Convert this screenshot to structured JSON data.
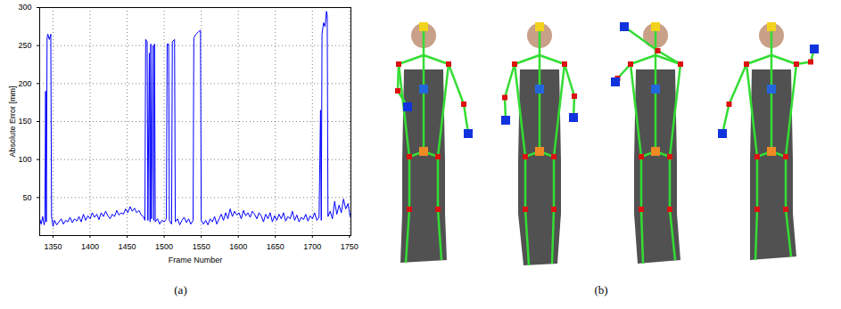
{
  "chart_data": {
    "type": "line",
    "x_label": "Frame Number",
    "y_label": "Absolute Error [mm]",
    "color": "#0000ff",
    "grid": true,
    "xlim": [
      1332,
      1752
    ],
    "xticks": [
      1350,
      1400,
      1450,
      1500,
      1550,
      1600,
      1650,
      1700,
      1750
    ],
    "ylim": [
      0,
      300
    ],
    "yticks": [
      50,
      100,
      150,
      200,
      250,
      300
    ],
    "x": [
      1332,
      1334,
      1336,
      1338,
      1339,
      1340,
      1341,
      1342,
      1343,
      1345,
      1347,
      1348,
      1350,
      1352,
      1355,
      1358,
      1361,
      1364,
      1367,
      1370,
      1373,
      1376,
      1379,
      1382,
      1385,
      1388,
      1391,
      1394,
      1397,
      1400,
      1403,
      1406,
      1409,
      1412,
      1415,
      1418,
      1421,
      1424,
      1427,
      1430,
      1433,
      1436,
      1439,
      1442,
      1445,
      1448,
      1451,
      1454,
      1457,
      1460,
      1463,
      1466,
      1469,
      1472,
      1474,
      1475,
      1477,
      1478,
      1480,
      1481,
      1482,
      1483,
      1485,
      1486,
      1487,
      1488,
      1491,
      1494,
      1497,
      1500,
      1503,
      1504,
      1506,
      1507,
      1510,
      1511,
      1514,
      1515,
      1518,
      1521,
      1524,
      1527,
      1530,
      1533,
      1536,
      1539,
      1540,
      1543,
      1546,
      1549,
      1550,
      1553,
      1556,
      1559,
      1562,
      1565,
      1568,
      1571,
      1574,
      1577,
      1580,
      1583,
      1586,
      1589,
      1592,
      1595,
      1598,
      1601,
      1604,
      1607,
      1610,
      1613,
      1616,
      1619,
      1622,
      1625,
      1628,
      1631,
      1634,
      1637,
      1640,
      1643,
      1646,
      1649,
      1652,
      1655,
      1658,
      1661,
      1664,
      1667,
      1670,
      1673,
      1676,
      1679,
      1682,
      1685,
      1688,
      1691,
      1694,
      1697,
      1700,
      1703,
      1706,
      1709,
      1711,
      1712,
      1713,
      1715,
      1717,
      1719,
      1720,
      1721,
      1724,
      1727,
      1730,
      1733,
      1736,
      1739,
      1742,
      1745,
      1748,
      1751
    ],
    "values": [
      22,
      15,
      25,
      14,
      20,
      190,
      18,
      260,
      265,
      258,
      265,
      25,
      12,
      20,
      14,
      18,
      22,
      15,
      20,
      18,
      24,
      17,
      22,
      19,
      25,
      18,
      28,
      20,
      26,
      22,
      30,
      24,
      28,
      21,
      30,
      25,
      32,
      26,
      22,
      28,
      25,
      33,
      27,
      30,
      28,
      35,
      30,
      38,
      32,
      36,
      30,
      33,
      27,
      25,
      20,
      258,
      255,
      20,
      240,
      18,
      252,
      22,
      250,
      20,
      252,
      18,
      22,
      15,
      20,
      18,
      22,
      252,
      252,
      20,
      15,
      255,
      258,
      18,
      22,
      14,
      20,
      24,
      17,
      22,
      15,
      20,
      260,
      265,
      268,
      270,
      20,
      15,
      20,
      14,
      22,
      18,
      25,
      15,
      22,
      28,
      20,
      30,
      22,
      35,
      25,
      32,
      27,
      30,
      22,
      33,
      26,
      30,
      24,
      32,
      28,
      22,
      30,
      26,
      18,
      28,
      22,
      30,
      18,
      26,
      20,
      28,
      22,
      30,
      19,
      25,
      22,
      32,
      20,
      27,
      18,
      24,
      21,
      28,
      19,
      26,
      22,
      30,
      20,
      24,
      165,
      20,
      265,
      280,
      275,
      295,
      290,
      25,
      32,
      22,
      45,
      28,
      40,
      30,
      48,
      35,
      42,
      25
    ]
  },
  "captions": [
    "(a)",
    "(b)"
  ]
}
